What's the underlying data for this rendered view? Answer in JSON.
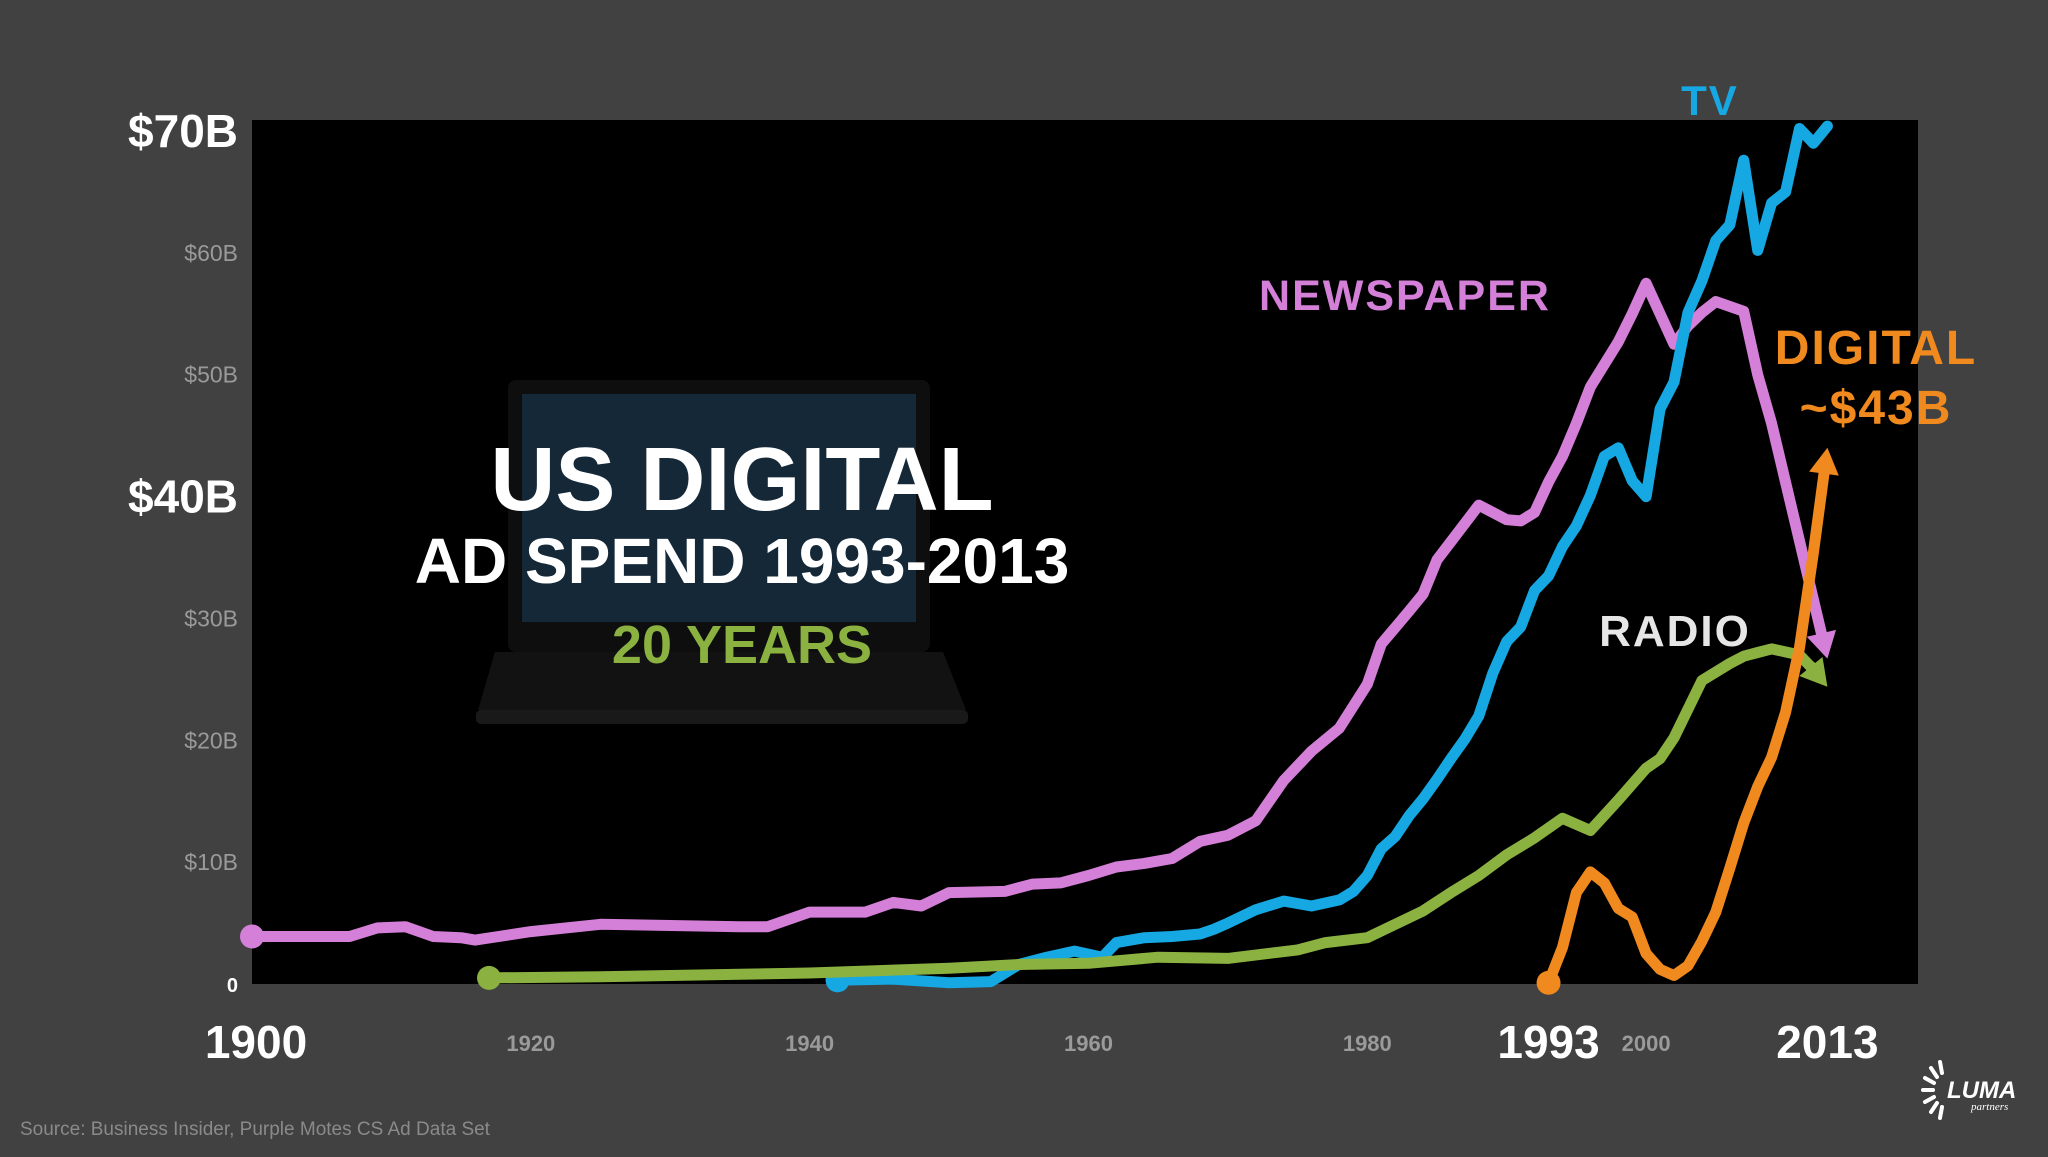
{
  "chart_data": {
    "type": "line",
    "title": "US DIGITAL",
    "subtitle": "AD SPEND 1993-2013",
    "highlight": "20 YEARS",
    "xlabel": "",
    "ylabel": "",
    "xlim": [
      1900,
      2021
    ],
    "ylim": [
      0,
      72
    ],
    "grid": false,
    "y_ticks": [
      {
        "value": 70,
        "label": "$70B",
        "major": true
      },
      {
        "value": 60,
        "label": "$60B",
        "major": false
      },
      {
        "value": 50,
        "label": "$50B",
        "major": false
      },
      {
        "value": 40,
        "label": "$40B",
        "major": true
      },
      {
        "value": 30,
        "label": "$30B",
        "major": false
      },
      {
        "value": 20,
        "label": "$20B",
        "major": false
      },
      {
        "value": 10,
        "label": "$10B",
        "major": false
      },
      {
        "value": 0,
        "label": "0",
        "major": false
      }
    ],
    "x_ticks": [
      {
        "value": 1900,
        "label": "1900",
        "major": true
      },
      {
        "value": 1920,
        "label": "1920",
        "major": false
      },
      {
        "value": 1940,
        "label": "1940",
        "major": false
      },
      {
        "value": 1960,
        "label": "1960",
        "major": false
      },
      {
        "value": 1980,
        "label": "1980",
        "major": false
      },
      {
        "value": 1993,
        "label": "1993",
        "major": true
      },
      {
        "value": 2000,
        "label": "2000",
        "major": false
      },
      {
        "value": 2013,
        "label": "2013",
        "major": true
      }
    ],
    "series": [
      {
        "name": "NEWSPAPER",
        "color": "#d47fd8",
        "start_marker": true,
        "end_arrow": true,
        "x": [
          1900,
          1907,
          1909,
          1911,
          1913,
          1915,
          1916,
          1920,
          1925,
          1930,
          1935,
          1937,
          1940,
          1944,
          1946,
          1948,
          1950,
          1954,
          1956,
          1958,
          1960,
          1962,
          1964,
          1966,
          1968,
          1970,
          1972,
          1974,
          1976,
          1978,
          1980,
          1981,
          1983,
          1984,
          1985,
          1987,
          1988,
          1990,
          1991,
          1992,
          1993,
          1994,
          1995,
          1996,
          1998,
          1999,
          2000,
          2002,
          2003,
          2004,
          2005,
          2007,
          2008,
          2009,
          2013
        ],
        "y": [
          3.9,
          3.9,
          4.6,
          4.7,
          3.9,
          3.8,
          3.6,
          4.3,
          4.9,
          4.8,
          4.7,
          4.7,
          5.9,
          5.9,
          6.7,
          6.4,
          7.5,
          7.6,
          8.2,
          8.3,
          8.9,
          9.6,
          9.9,
          10.3,
          11.7,
          12.2,
          13.4,
          16.7,
          19.1,
          21,
          24.6,
          27.9,
          30.6,
          32,
          34.8,
          37.8,
          39.3,
          38.1,
          38,
          38.7,
          41.2,
          43.3,
          46,
          49,
          52.7,
          55,
          57.5,
          52.5,
          54,
          55.1,
          56,
          55.2,
          50,
          46,
          26.7
        ]
      },
      {
        "name": "TV",
        "color": "#15a8e3",
        "start_marker": true,
        "end_arrow": false,
        "x": [
          1942,
          1946,
          1950,
          1953,
          1955,
          1957,
          1959,
          1961,
          1962,
          1964,
          1966,
          1968,
          1969,
          1970,
          1972,
          1974,
          1976,
          1978,
          1979,
          1980,
          1981,
          1982,
          1983,
          1984,
          1985,
          1986,
          1987,
          1988,
          1989,
          1990,
          1991,
          1992,
          1993,
          1994,
          1995,
          1996,
          1997,
          1998,
          1999,
          2000,
          2001,
          2002,
          2003,
          2004,
          2005,
          2006,
          2007,
          2008,
          2009,
          2010,
          2011,
          2012,
          2013
        ],
        "y": [
          0.3,
          0.4,
          0.1,
          0.2,
          1.6,
          2.2,
          2.7,
          2.2,
          3.4,
          3.8,
          3.9,
          4.1,
          4.5,
          5,
          6.1,
          6.8,
          6.4,
          6.9,
          7.6,
          8.9,
          11.1,
          12.1,
          13.8,
          15.2,
          16.8,
          18.5,
          20.1,
          22,
          25.5,
          28.1,
          29.3,
          32.3,
          33.5,
          35.9,
          37.6,
          40.1,
          43.3,
          44,
          41.3,
          40,
          47.2,
          49.4,
          55.1,
          57.7,
          61,
          62.3,
          67.6,
          60.2,
          64.1,
          65,
          70.2,
          69,
          70.4
        ]
      },
      {
        "name": "RADIO",
        "color": "#8bb241",
        "start_marker": true,
        "end_arrow": true,
        "x": [
          1917,
          1925,
          1930,
          1935,
          1940,
          1945,
          1950,
          1955,
          1960,
          1965,
          1970,
          1975,
          1977,
          1980,
          1982,
          1984,
          1986,
          1988,
          1990,
          1992,
          1994,
          1996,
          1998,
          2000,
          2001,
          2002,
          2004,
          2006,
          2007,
          2008,
          2009,
          2011,
          2012,
          2013
        ],
        "y": [
          0.5,
          0.6,
          0.7,
          0.8,
          0.9,
          1.1,
          1.3,
          1.6,
          1.7,
          2.2,
          2.1,
          2.8,
          3.4,
          3.8,
          4.9,
          6,
          7.5,
          8.9,
          10.6,
          12,
          13.6,
          12.6,
          15.1,
          17.7,
          18.5,
          20.2,
          24.9,
          26.3,
          26.9,
          27.2,
          27.5,
          27,
          25.8,
          24.4
        ]
      },
      {
        "name": "DIGITAL",
        "value_label": "~$43B",
        "color": "#f08a1e",
        "start_marker": true,
        "end_arrow": true,
        "x": [
          1993,
          1994,
          1995,
          1996,
          1997,
          1998,
          1999,
          2000,
          2001,
          2002,
          2003,
          2004,
          2005,
          2006,
          2007,
          2008,
          2009,
          2010,
          2011,
          2012,
          2013
        ],
        "y": [
          0.1,
          3,
          7.5,
          9.2,
          8.3,
          6.2,
          5.5,
          2.5,
          1.2,
          0.7,
          1.5,
          3.5,
          5.9,
          9.5,
          13.2,
          16.2,
          18.6,
          22.3,
          27.6,
          35.4,
          44
        ]
      }
    ],
    "annotations": [
      {
        "series": "TV",
        "text": "TV"
      },
      {
        "series": "NEWSPAPER",
        "text": "NEWSPAPER"
      },
      {
        "series": "RADIO",
        "text": "RADIO"
      },
      {
        "series": "DIGITAL",
        "text": "DIGITAL"
      },
      {
        "series": "DIGITAL",
        "text": "~$43B"
      }
    ]
  },
  "source": "Source: Business Insider, Purple Motes CS Ad Data Set",
  "logo": {
    "text": "LUMA",
    "tagline": "partners"
  },
  "colors": {
    "background": "#414141",
    "plot_background": "#000000",
    "title_text": "#ffffff",
    "highlight_text": "#8bb241",
    "tick_minor": "#9a9a9a"
  }
}
